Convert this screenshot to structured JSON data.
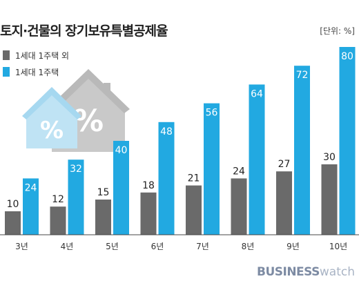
{
  "title": "토지·건물의 장기보유특별공제율",
  "unit_label": "[단위: %]",
  "brand": {
    "bold": "BUSINESS",
    "light": "watch"
  },
  "colors": {
    "series1": "#6a6a6a",
    "series2": "#22a9e1"
  },
  "chart_data": {
    "type": "bar",
    "categories": [
      "3년",
      "4년",
      "5년",
      "6년",
      "7년",
      "8년",
      "9년",
      "10년"
    ],
    "series": [
      {
        "name": "1세대 1주택 외",
        "values": [
          10,
          12,
          15,
          18,
          21,
          24,
          27,
          30
        ]
      },
      {
        "name": "1세대 1주택",
        "values": [
          24,
          32,
          40,
          48,
          56,
          64,
          72,
          80
        ]
      }
    ],
    "ylim": [
      0,
      80
    ],
    "grid": false,
    "legend": "top-left"
  }
}
